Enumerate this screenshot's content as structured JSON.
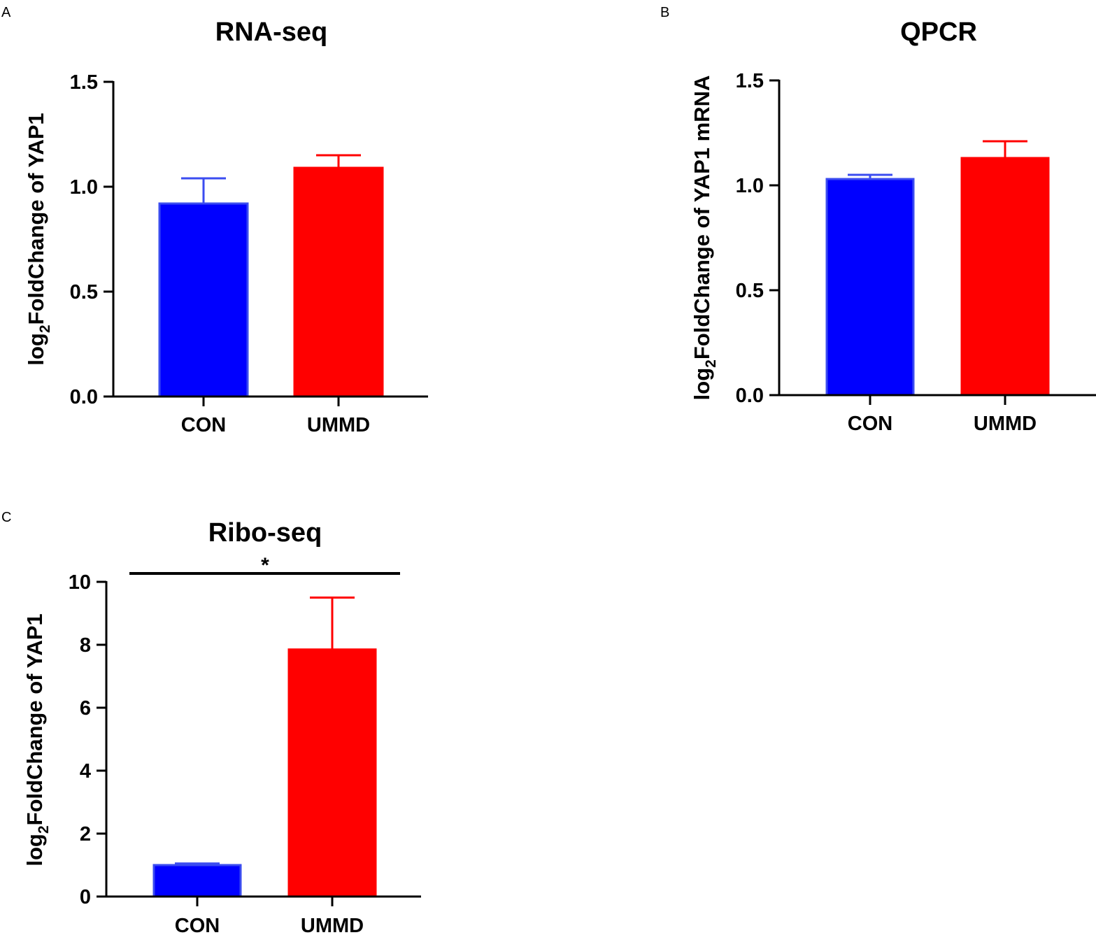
{
  "chart_data": [
    {
      "panel": "A",
      "type": "bar",
      "title": "RNA-seq",
      "ylabel_prefix": "log",
      "ylabel_subscript": "2",
      "ylabel_rest": "FoldChange of YAP1",
      "xlabel": "",
      "categories": [
        "CON",
        "UMMD"
      ],
      "values": [
        0.92,
        1.09
      ],
      "errors": [
        0.12,
        0.06
      ],
      "colors": [
        "#0000ff",
        "#ff0000"
      ],
      "edge_colors": [
        "#3b4cf0",
        "#ff0000"
      ],
      "ylim": [
        0,
        1.5
      ],
      "yticks": [
        0,
        0.5,
        1.0,
        1.5
      ],
      "ytick_labels": [
        "0.0",
        "0.5",
        "1.0",
        "1.5"
      ],
      "significance": null
    },
    {
      "panel": "B",
      "type": "bar",
      "title": "QPCR",
      "ylabel_prefix": "log",
      "ylabel_subscript": "2",
      "ylabel_rest": "FoldChange of YAP1 mRNA",
      "xlabel": "",
      "categories": [
        "CON",
        "UMMD"
      ],
      "values": [
        1.03,
        1.13
      ],
      "errors": [
        0.02,
        0.08
      ],
      "colors": [
        "#0000ff",
        "#ff0000"
      ],
      "edge_colors": [
        "#3b4cf0",
        "#ff0000"
      ],
      "ylim": [
        0,
        1.5
      ],
      "yticks": [
        0,
        0.5,
        1.0,
        1.5
      ],
      "ytick_labels": [
        "0.0",
        "0.5",
        "1.0",
        "1.5"
      ],
      "significance": null
    },
    {
      "panel": "C",
      "type": "bar",
      "title": "Ribo-seq",
      "ylabel_prefix": "log",
      "ylabel_subscript": "2",
      "ylabel_rest": "FoldChange of YAP1",
      "xlabel": "",
      "categories": [
        "CON",
        "UMMD"
      ],
      "values": [
        1.0,
        7.85
      ],
      "errors": [
        0.05,
        1.65
      ],
      "colors": [
        "#0000ff",
        "#ff0000"
      ],
      "edge_colors": [
        "#3b4cf0",
        "#ff0000"
      ],
      "ylim": [
        0,
        10
      ],
      "yticks": [
        0,
        2,
        4,
        6,
        8,
        10
      ],
      "ytick_labels": [
        "0",
        "2",
        "4",
        "6",
        "8",
        "10"
      ],
      "significance": {
        "label": "*",
        "between": [
          "CON",
          "UMMD"
        ]
      }
    }
  ]
}
